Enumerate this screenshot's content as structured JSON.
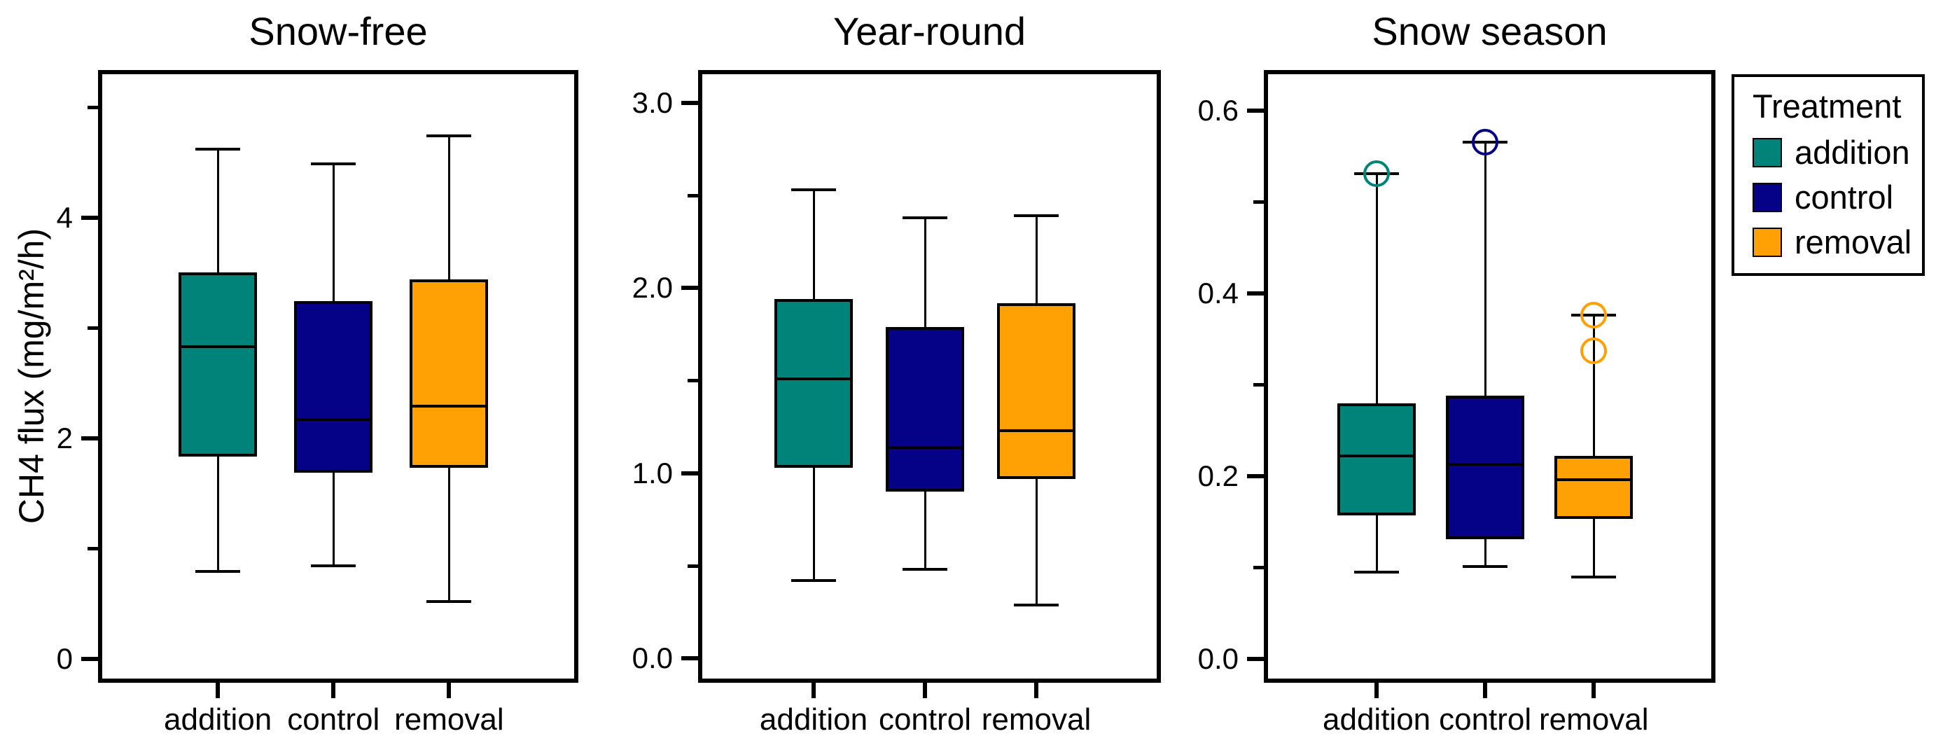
{
  "figure": {
    "ylabel": "CH4 flux (mg/m²/h)"
  },
  "colors": {
    "addition": "#028379",
    "control": "#050287",
    "removal": "#FFA005",
    "axis": "#000000",
    "background": "#ffffff"
  },
  "legend": {
    "title": "Treatment",
    "items": [
      {
        "label": "addition",
        "color_key": "addition"
      },
      {
        "label": "control",
        "color_key": "control"
      },
      {
        "label": "removal",
        "color_key": "removal"
      }
    ]
  },
  "chart_data": [
    {
      "type": "box",
      "title": "Snow-free",
      "categories": [
        "addition",
        "control",
        "removal"
      ],
      "ylim": [
        -0.18,
        5.3
      ],
      "yticks": [
        {
          "v": 0,
          "label": "0"
        },
        {
          "v": 2,
          "label": "2"
        },
        {
          "v": 4,
          "label": "4"
        }
      ],
      "yticks_minor": [
        1,
        3,
        5
      ],
      "grid": false,
      "series": [
        {
          "name": "addition",
          "whislo": 0.79,
          "q1": 1.83,
          "med": 2.83,
          "q3": 3.5,
          "whishi": 4.62,
          "outliers": []
        },
        {
          "name": "control",
          "whislo": 0.84,
          "q1": 1.69,
          "med": 2.17,
          "q3": 3.24,
          "whishi": 4.49,
          "outliers": []
        },
        {
          "name": "removal",
          "whislo": 0.52,
          "q1": 1.73,
          "med": 2.29,
          "q3": 3.44,
          "whishi": 4.74,
          "outliers": []
        }
      ]
    },
    {
      "type": "box",
      "title": "Year-round",
      "categories": [
        "addition",
        "control",
        "removal"
      ],
      "ylim": [
        -0.108,
        3.155
      ],
      "yticks": [
        {
          "v": 0.0,
          "label": "0.0"
        },
        {
          "v": 1.0,
          "label": "1.0"
        },
        {
          "v": 2.0,
          "label": "2.0"
        },
        {
          "v": 3.0,
          "label": "3.0"
        }
      ],
      "yticks_minor": [
        0.5,
        1.5,
        2.5
      ],
      "grid": false,
      "series": [
        {
          "name": "addition",
          "whislo": 0.42,
          "q1": 1.03,
          "med": 1.51,
          "q3": 1.94,
          "whishi": 2.53,
          "outliers": []
        },
        {
          "name": "control",
          "whislo": 0.48,
          "q1": 0.9,
          "med": 1.14,
          "q3": 1.79,
          "whishi": 2.38,
          "outliers": []
        },
        {
          "name": "removal",
          "whislo": 0.29,
          "q1": 0.97,
          "med": 1.23,
          "q3": 1.92,
          "whishi": 2.39,
          "outliers": []
        }
      ]
    },
    {
      "type": "box",
      "title": "Snow season",
      "categories": [
        "addition",
        "control",
        "removal"
      ],
      "ylim": [
        -0.0215,
        0.64
      ],
      "yticks": [
        {
          "v": 0.0,
          "label": "0.0"
        },
        {
          "v": 0.2,
          "label": "0.2"
        },
        {
          "v": 0.4,
          "label": "0.4"
        },
        {
          "v": 0.6,
          "label": "0.6"
        }
      ],
      "yticks_minor": [
        0.1,
        0.3,
        0.5
      ],
      "grid": false,
      "series": [
        {
          "name": "addition",
          "whislo": 0.095,
          "q1": 0.157,
          "med": 0.222,
          "q3": 0.28,
          "whishi": 0.531,
          "outliers": [
            0.531
          ]
        },
        {
          "name": "control",
          "whislo": 0.101,
          "q1": 0.131,
          "med": 0.213,
          "q3": 0.288,
          "whishi": 0.566,
          "outliers": [
            0.566
          ]
        },
        {
          "name": "removal",
          "whislo": 0.09,
          "q1": 0.153,
          "med": 0.196,
          "q3": 0.222,
          "whishi": 0.376,
          "outliers": [
            0.376,
            0.337
          ]
        }
      ]
    }
  ]
}
